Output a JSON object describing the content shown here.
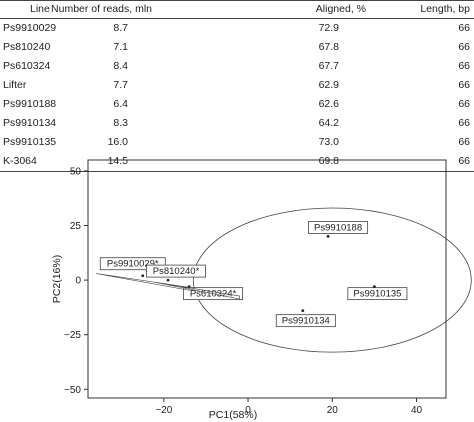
{
  "table": {
    "headers": [
      "Line",
      "Number of reads, mln",
      "Aligned, %",
      "Length, bp"
    ],
    "rows": [
      [
        "Ps9910029",
        "8.7",
        "72.9",
        "66"
      ],
      [
        "Ps810240",
        "7.1",
        "67.8",
        "66"
      ],
      [
        "Ps610324",
        "8.4",
        "67.7",
        "66"
      ],
      [
        "Lifter",
        "7.7",
        "62.9",
        "66"
      ],
      [
        "Ps9910188",
        "6.4",
        "62.6",
        "66"
      ],
      [
        "Ps9910134",
        "8.3",
        "64.2",
        "66"
      ],
      [
        "Ps9910135",
        "16.0",
        "73.0",
        "66"
      ],
      [
        "K-3064",
        "14.5",
        "69.8",
        "66"
      ]
    ]
  },
  "chart_data": {
    "type": "scatter",
    "xlabel": "PC1(58%)",
    "ylabel": "PC2(16%)",
    "xlim": [
      -38,
      47
    ],
    "ylim": [
      -54,
      55
    ],
    "xticks": [
      -20,
      0,
      20,
      40
    ],
    "yticks": [
      -50,
      -25,
      0,
      25,
      50
    ],
    "xtick_labels": [
      "−20",
      "0",
      "20",
      "40"
    ],
    "ytick_labels": [
      "−50",
      "−25",
      "0",
      "25",
      "50"
    ],
    "grid": false,
    "points": [
      {
        "label": "Ps9910029*",
        "x": -25,
        "y": 2
      },
      {
        "label": "Ps810240*",
        "x": -19,
        "y": 0
      },
      {
        "label": "Ps610324*",
        "x": -14,
        "y": -3
      },
      {
        "label": "Ps9910188",
        "x": 19,
        "y": 20
      },
      {
        "label": "Ps9910134",
        "x": 13,
        "y": -14
      },
      {
        "label": "Ps9910135",
        "x": 30,
        "y": -3
      }
    ],
    "circle": {
      "cx": 20,
      "cy": 0,
      "r": 33
    }
  }
}
